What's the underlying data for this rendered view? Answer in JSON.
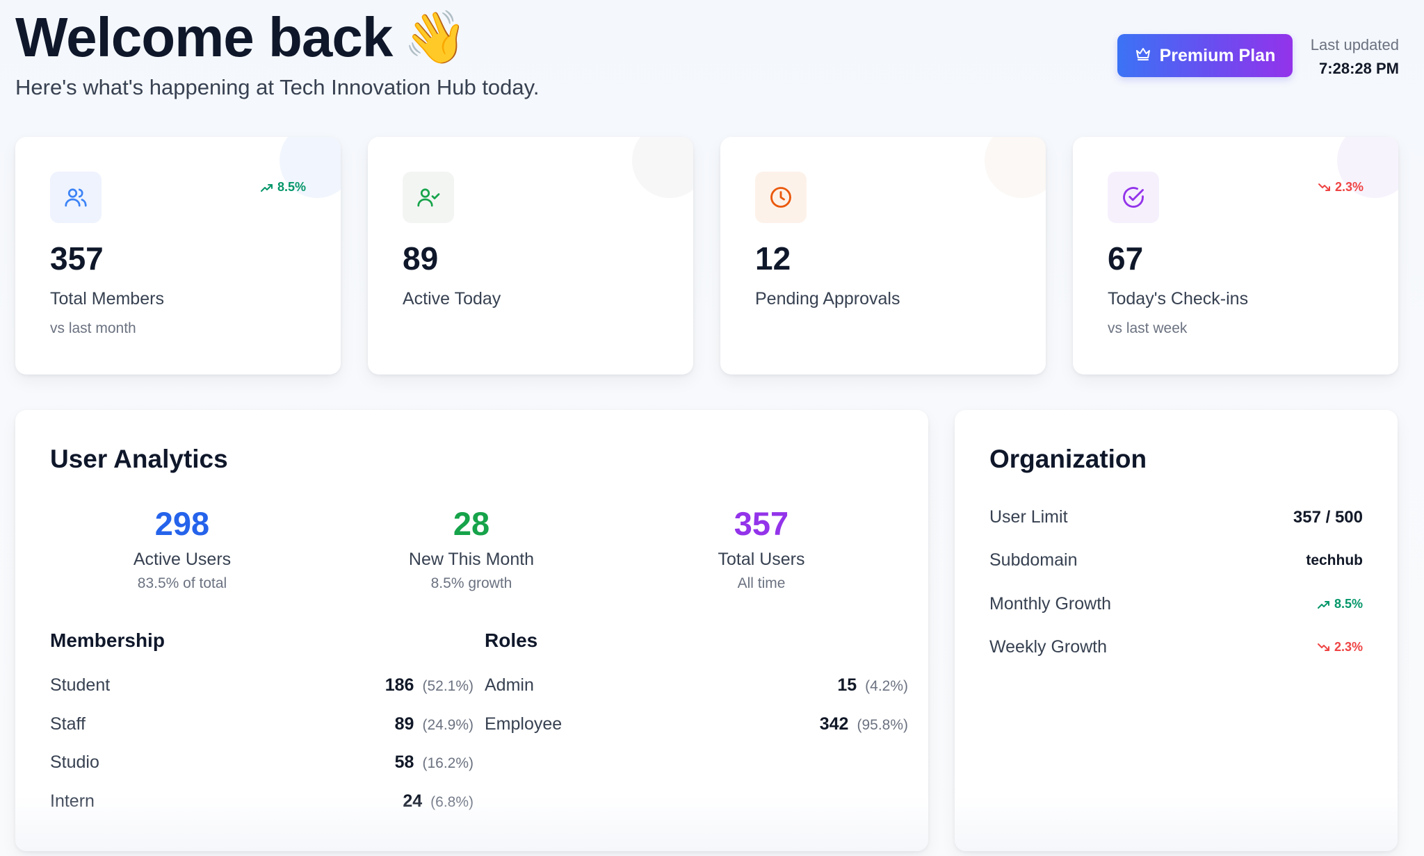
{
  "header": {
    "title": "Welcome back",
    "wave_emoji": "👋",
    "subtitle": "Here's what's happening at Tech Innovation Hub today.",
    "premium_label": "Premium Plan",
    "updated_label": "Last updated",
    "updated_time": "7:28:28 PM"
  },
  "stats": [
    {
      "icon": "users-icon",
      "value": "357",
      "label": "Total Members",
      "sub": "vs last month",
      "trend": "8.5%",
      "trend_dir": "up",
      "accent": "#3b82f6"
    },
    {
      "icon": "user-check-icon",
      "value": "89",
      "label": "Active Today",
      "sub": "",
      "trend": "",
      "trend_dir": "",
      "accent": "#16a34a"
    },
    {
      "icon": "clock-icon",
      "value": "12",
      "label": "Pending Approvals",
      "sub": "",
      "trend": "",
      "trend_dir": "",
      "accent": "#ea580c"
    },
    {
      "icon": "check-circle-icon",
      "value": "67",
      "label": "Today's Check-ins",
      "sub": "vs last week",
      "trend": "2.3%",
      "trend_dir": "down",
      "accent": "#9333ea"
    }
  ],
  "analytics": {
    "title": "User Analytics",
    "metrics": [
      {
        "value": "298",
        "label": "Active Users",
        "sub": "83.5% of total",
        "color": "#2563eb"
      },
      {
        "value": "28",
        "label": "New This Month",
        "sub": "8.5% growth",
        "color": "#16a34a"
      },
      {
        "value": "357",
        "label": "Total Users",
        "sub": "All time",
        "color": "#9333ea"
      }
    ],
    "membership": {
      "title": "Membership",
      "rows": [
        {
          "name": "Student",
          "count": "186",
          "pct": "(52.1%)"
        },
        {
          "name": "Staff",
          "count": "89",
          "pct": "(24.9%)"
        },
        {
          "name": "Studio",
          "count": "58",
          "pct": "(16.2%)"
        },
        {
          "name": "Intern",
          "count": "24",
          "pct": "(6.8%)"
        }
      ]
    },
    "roles": {
      "title": "Roles",
      "rows": [
        {
          "name": "Admin",
          "count": "15",
          "pct": "(4.2%)"
        },
        {
          "name": "Employee",
          "count": "342",
          "pct": "(95.8%)"
        }
      ]
    }
  },
  "organization": {
    "title": "Organization",
    "user_limit_label": "User Limit",
    "user_limit_value": "357 / 500",
    "subdomain_label": "Subdomain",
    "subdomain_value": "techhub",
    "monthly_growth_label": "Monthly Growth",
    "monthly_growth_value": "8.5%",
    "weekly_growth_label": "Weekly Growth",
    "weekly_growth_value": "2.3%"
  },
  "colors": {
    "up": "#059669",
    "down": "#ef4444",
    "premium_gradient_start": "#3b73f5",
    "premium_gradient_end": "#9333ea"
  }
}
